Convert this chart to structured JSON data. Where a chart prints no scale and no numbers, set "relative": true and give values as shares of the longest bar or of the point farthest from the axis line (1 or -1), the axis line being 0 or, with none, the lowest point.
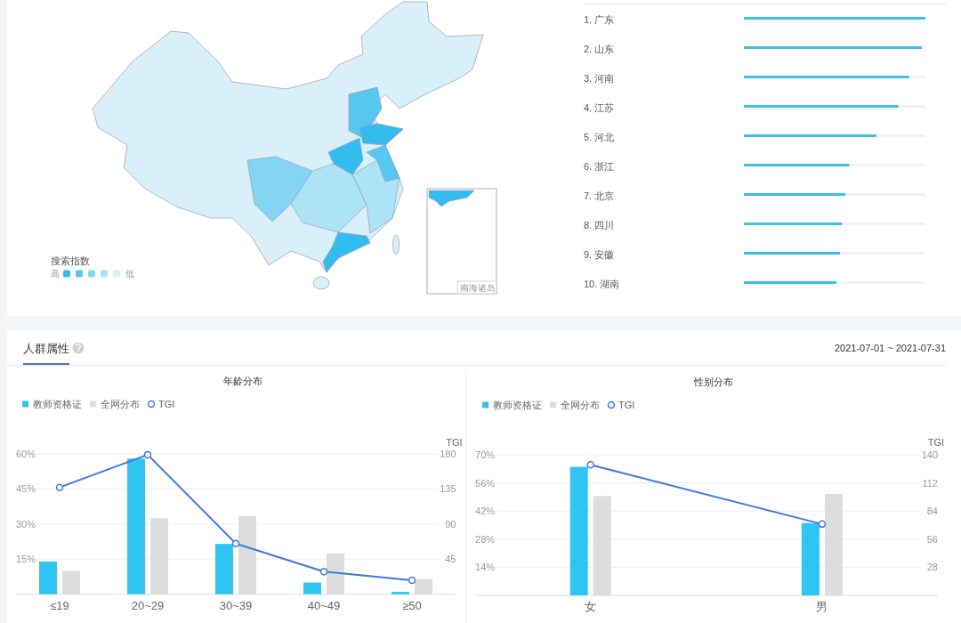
{
  "chart_data": [
    {
      "type": "other",
      "legend_title": "搜索指数",
      "annotations": [
        "高",
        "低",
        "南海诸岛"
      ],
      "colors": [
        "#33bdee",
        "#55c7f0",
        "#84d5f4",
        "#ade3f7",
        "#d9effa"
      ]
    },
    {
      "type": "bar",
      "orientation": "horizontal",
      "relative": true,
      "categories": [
        "1. 广东",
        "2. 山东",
        "3. 河南",
        "4. 江苏",
        "5. 河北",
        "6. 浙江",
        "7. 北京",
        "8. 四川",
        "9. 安徽",
        "10. 湖南"
      ],
      "values": [
        1,
        0.98,
        0.91,
        0.85,
        0.73,
        0.58,
        0.56,
        0.54,
        0.53,
        0.51
      ],
      "color": "#3dbfe8"
    },
    {
      "type": "other",
      "title": "人群属性",
      "subtitle": "2021-07-01 ~ 2021-07-31"
    },
    {
      "type": "bar",
      "title": "年龄分布",
      "categories": [
        "≤19",
        "20~29",
        "30~39",
        "40~49",
        "≥50"
      ],
      "series": [
        {
          "name": "教师资格证",
          "color": "#30c4f4",
          "values": [
            14,
            58,
            21.5,
            5,
            1
          ]
        },
        {
          "name": "全网分布",
          "color": "#dddddd",
          "values": [
            10,
            32.5,
            33.5,
            17.5,
            6.5
          ]
        },
        {
          "name": "TGI",
          "type": "line",
          "axis": "y2",
          "color": "#3d7bd9",
          "values": [
            137,
            179,
            65,
            29,
            18
          ]
        }
      ],
      "ylim": [
        0,
        60
      ],
      "yticks": [
        {
          "value": 15,
          "label": "15%"
        },
        {
          "value": 30,
          "label": "30%"
        },
        {
          "value": 45,
          "label": "45%"
        },
        {
          "value": 60,
          "label": "60%"
        }
      ],
      "y2label": "TGI",
      "y2lim": [
        0,
        180
      ],
      "y2ticks": [
        45,
        90,
        135,
        180
      ],
      "grid": "y",
      "legend": "top left",
      "marker": "circle",
      "line_style": "solid"
    },
    {
      "type": "bar",
      "title": "性别分布",
      "categories": [
        "女",
        "男"
      ],
      "series": [
        {
          "name": "教师资格证",
          "color": "#30c4f4",
          "values": [
            64,
            36
          ]
        },
        {
          "name": "全网分布",
          "color": "#dddddd",
          "values": [
            49.5,
            50.5
          ]
        },
        {
          "name": "TGI",
          "type": "line",
          "axis": "y2",
          "color": "#3d7bd9",
          "values": [
            130,
            71
          ]
        }
      ],
      "ylim": [
        0,
        70
      ],
      "yticks": [
        {
          "value": 14,
          "label": "14%"
        },
        {
          "value": 28,
          "label": "28%"
        },
        {
          "value": 42,
          "label": "42%"
        },
        {
          "value": 56,
          "label": "56%"
        },
        {
          "value": 70,
          "label": "70%"
        }
      ],
      "y2label": "TGI",
      "y2lim": [
        0,
        140
      ],
      "y2ticks": [
        28,
        56,
        84,
        112,
        140
      ],
      "grid": "y",
      "legend": "top left",
      "marker": "circle",
      "line_style": "solid"
    }
  ]
}
